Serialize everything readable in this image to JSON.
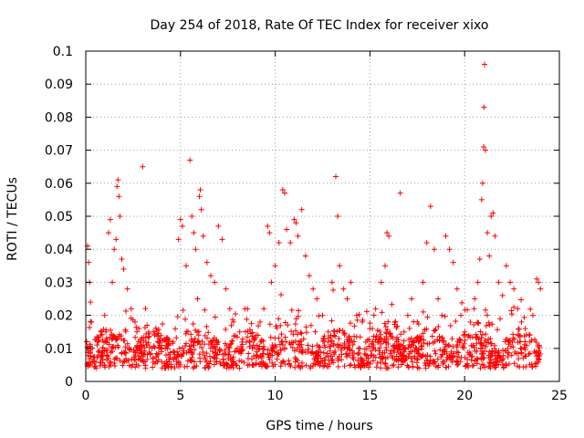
{
  "chart_data": {
    "type": "scatter",
    "title": "Day 254 of 2018, Rate Of TEC Index for receiver xixo",
    "xlabel": "GPS time / hours",
    "ylabel": "ROTI / TECUs",
    "xlim": [
      0,
      25
    ],
    "ylim": [
      0,
      0.1
    ],
    "xticks": [
      0,
      5,
      10,
      15,
      20,
      25
    ],
    "xtick_labels": [
      "0",
      "5",
      "10",
      "15",
      "20",
      "25"
    ],
    "yticks": [
      0,
      0.01,
      0.02,
      0.03,
      0.04,
      0.05,
      0.06,
      0.07,
      0.08,
      0.09,
      0.1
    ],
    "ytick_labels": [
      "0",
      "0.01",
      "0.02",
      "0.03",
      "0.04",
      "0.05",
      "0.06",
      "0.07",
      "0.08",
      "0.09",
      "0.1"
    ],
    "grid": true,
    "marker": "+",
    "color": "#ff0000",
    "series": [
      {
        "name": "ROTI",
        "points": [
          [
            0.05,
            0.012
          ],
          [
            0.1,
            0.041
          ],
          [
            0.15,
            0.036
          ],
          [
            0.2,
            0.03
          ],
          [
            0.25,
            0.024
          ],
          [
            0.3,
            0.018
          ],
          [
            0.35,
            0.01
          ],
          [
            0.45,
            0.006
          ],
          [
            0.6,
            0.011
          ],
          [
            0.8,
            0.015
          ],
          [
            1.0,
            0.02
          ],
          [
            1.2,
            0.045
          ],
          [
            1.3,
            0.049
          ],
          [
            1.4,
            0.03
          ],
          [
            1.5,
            0.04
          ],
          [
            1.6,
            0.043
          ],
          [
            1.65,
            0.059
          ],
          [
            1.7,
            0.061
          ],
          [
            1.75,
            0.056
          ],
          [
            1.8,
            0.05
          ],
          [
            1.9,
            0.037
          ],
          [
            2.0,
            0.034
          ],
          [
            2.2,
            0.028
          ],
          [
            2.4,
            0.022
          ],
          [
            2.6,
            0.018
          ],
          [
            2.8,
            0.016
          ],
          [
            3.0,
            0.065
          ],
          [
            3.2,
            0.011
          ],
          [
            3.5,
            0.01
          ],
          [
            3.8,
            0.012
          ],
          [
            4.0,
            0.009
          ],
          [
            4.3,
            0.011
          ],
          [
            4.6,
            0.012
          ],
          [
            4.9,
            0.043
          ],
          [
            5.0,
            0.049
          ],
          [
            5.1,
            0.047
          ],
          [
            5.3,
            0.035
          ],
          [
            5.5,
            0.067
          ],
          [
            5.6,
            0.05
          ],
          [
            5.7,
            0.045
          ],
          [
            5.8,
            0.04
          ],
          [
            5.9,
            0.025
          ],
          [
            6.0,
            0.056
          ],
          [
            6.05,
            0.058
          ],
          [
            6.1,
            0.052
          ],
          [
            6.2,
            0.044
          ],
          [
            6.4,
            0.036
          ],
          [
            6.6,
            0.032
          ],
          [
            6.8,
            0.03
          ],
          [
            7.0,
            0.047
          ],
          [
            7.2,
            0.043
          ],
          [
            7.4,
            0.028
          ],
          [
            7.6,
            0.022
          ],
          [
            7.8,
            0.018
          ],
          [
            8.0,
            0.01
          ],
          [
            8.4,
            0.022
          ],
          [
            8.8,
            0.01
          ],
          [
            9.0,
            0.014
          ],
          [
            9.2,
            0.018
          ],
          [
            9.4,
            0.022
          ],
          [
            9.6,
            0.047
          ],
          [
            9.7,
            0.045
          ],
          [
            9.8,
            0.03
          ],
          [
            10.0,
            0.035
          ],
          [
            10.2,
            0.042
          ],
          [
            10.4,
            0.058
          ],
          [
            10.5,
            0.057
          ],
          [
            10.6,
            0.046
          ],
          [
            10.8,
            0.042
          ],
          [
            11.0,
            0.049
          ],
          [
            11.1,
            0.048
          ],
          [
            11.2,
            0.044
          ],
          [
            11.4,
            0.052
          ],
          [
            11.6,
            0.038
          ],
          [
            11.8,
            0.032
          ],
          [
            12.0,
            0.028
          ],
          [
            12.2,
            0.025
          ],
          [
            12.5,
            0.02
          ],
          [
            12.8,
            0.015
          ],
          [
            13.0,
            0.03
          ],
          [
            13.2,
            0.062
          ],
          [
            13.3,
            0.05
          ],
          [
            13.4,
            0.035
          ],
          [
            13.6,
            0.028
          ],
          [
            13.8,
            0.025
          ],
          [
            14.0,
            0.03
          ],
          [
            14.3,
            0.02
          ],
          [
            14.6,
            0.018
          ],
          [
            15.0,
            0.016
          ],
          [
            15.3,
            0.022
          ],
          [
            15.6,
            0.03
          ],
          [
            15.8,
            0.035
          ],
          [
            15.9,
            0.045
          ],
          [
            16.0,
            0.044
          ],
          [
            16.3,
            0.01
          ],
          [
            16.6,
            0.057
          ],
          [
            16.8,
            0.015
          ],
          [
            17.0,
            0.02
          ],
          [
            17.2,
            0.025
          ],
          [
            17.5,
            0.018
          ],
          [
            17.8,
            0.03
          ],
          [
            18.0,
            0.042
          ],
          [
            18.2,
            0.053
          ],
          [
            18.4,
            0.04
          ],
          [
            18.6,
            0.025
          ],
          [
            18.8,
            0.02
          ],
          [
            19.0,
            0.044
          ],
          [
            19.2,
            0.04
          ],
          [
            19.4,
            0.036
          ],
          [
            19.6,
            0.028
          ],
          [
            19.8,
            0.02
          ],
          [
            20.0,
            0.015
          ],
          [
            20.3,
            0.018
          ],
          [
            20.5,
            0.022
          ],
          [
            20.7,
            0.03
          ],
          [
            20.8,
            0.037
          ],
          [
            20.9,
            0.055
          ],
          [
            20.95,
            0.06
          ],
          [
            21.0,
            0.071
          ],
          [
            21.02,
            0.083
          ],
          [
            21.05,
            0.096
          ],
          [
            21.1,
            0.07
          ],
          [
            21.2,
            0.045
          ],
          [
            21.3,
            0.038
          ],
          [
            21.4,
            0.05
          ],
          [
            21.5,
            0.051
          ],
          [
            21.6,
            0.044
          ],
          [
            21.8,
            0.03
          ],
          [
            22.0,
            0.026
          ],
          [
            22.2,
            0.035
          ],
          [
            22.4,
            0.03
          ],
          [
            22.6,
            0.028
          ],
          [
            22.8,
            0.022
          ],
          [
            23.0,
            0.018
          ],
          [
            23.2,
            0.016
          ],
          [
            23.4,
            0.014
          ],
          [
            23.6,
            0.02
          ],
          [
            23.8,
            0.031
          ],
          [
            23.9,
            0.03
          ],
          [
            24.0,
            0.028
          ]
        ]
      }
    ]
  }
}
